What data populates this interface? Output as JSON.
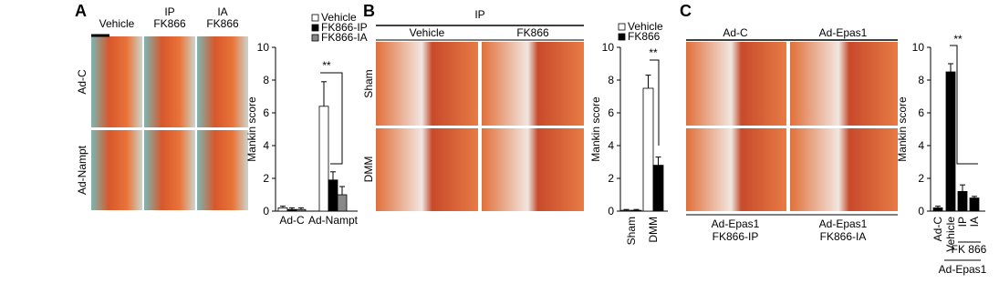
{
  "panels": [
    {
      "letter": "A",
      "columns": [
        [
          "Vehicle"
        ],
        [
          "IP",
          "FK866"
        ],
        [
          "IA",
          "FK866"
        ]
      ],
      "rows": [
        "Ad-C",
        "Ad-Nampt"
      ]
    },
    {
      "letter": "B",
      "header": "IP",
      "columns": [
        [
          "Vehicle"
        ],
        [
          "FK866"
        ]
      ],
      "rows": [
        "Sham",
        "DMM"
      ]
    },
    {
      "letter": "C",
      "columns": [
        [
          "Ad-C"
        ],
        [
          "Ad-Epas1"
        ]
      ],
      "footer": [
        [
          "Ad-Epas1",
          "FK866-IP"
        ],
        [
          "Ad-Epas1",
          "FK866-IA"
        ]
      ]
    }
  ],
  "chart_data": [
    {
      "type": "bar",
      "y_label": "Mankin score",
      "categories": [
        "Ad-C",
        "Ad-Nampt"
      ],
      "series": [
        {
          "name": "Vehicle",
          "color": "#ffffff",
          "values": [
            0.2,
            6.4
          ],
          "errors": [
            0.1,
            1.5
          ]
        },
        {
          "name": "FK866-IP",
          "color": "#000000",
          "values": [
            0.1,
            1.9
          ],
          "errors": [
            0.1,
            0.5
          ]
        },
        {
          "name": "FK866-IA",
          "color": "#888888",
          "values": [
            0.1,
            1.0
          ],
          "errors": [
            0.1,
            0.5
          ]
        }
      ],
      "ylim": [
        0,
        10
      ],
      "yticks": [
        0,
        2,
        4,
        6,
        8,
        10
      ],
      "annotation": "**"
    },
    {
      "type": "bar",
      "y_label": "Mankin score",
      "categories": [
        "Sham",
        "DMM"
      ],
      "series": [
        {
          "name": "Vehicle",
          "color": "#ffffff",
          "values": [
            0.05,
            7.5
          ],
          "errors": [
            0.05,
            0.8
          ]
        },
        {
          "name": "FK866",
          "color": "#000000",
          "values": [
            0.05,
            2.8
          ],
          "errors": [
            0.05,
            0.5
          ]
        }
      ],
      "ylim": [
        0,
        10
      ],
      "yticks": [
        0,
        2,
        4,
        6,
        8,
        10
      ],
      "annotation": "**"
    },
    {
      "type": "bar",
      "y_label": "Mankin score",
      "categories": [
        "Ad-C",
        "Vehicle",
        "IP",
        "IA"
      ],
      "values": [
        0.2,
        8.5,
        1.2,
        0.8
      ],
      "errors": [
        0.1,
        0.5,
        0.4,
        0.1
      ],
      "color": "#000000",
      "group_label": "FK 866",
      "footer": "Ad-Epas1",
      "ylim": [
        0,
        10
      ],
      "yticks": [
        0,
        2,
        4,
        6,
        8,
        10
      ],
      "annotation": "**"
    }
  ]
}
